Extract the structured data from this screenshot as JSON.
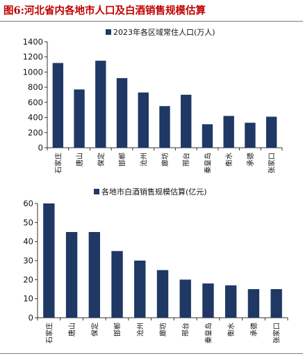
{
  "figure_title": "图6:河北省内各地市人口及白酒销售规模估算",
  "bar_color": "#1f3864",
  "footer": "",
  "chart_data": [
    {
      "type": "bar",
      "legend": "2023年各区域常住人口(万人)",
      "legend_position": "top-center",
      "categories": [
        "石家庄",
        "唐山",
        "保定",
        "邯郸",
        "沧州",
        "廊坊",
        "邢台",
        "秦皇岛",
        "衡水",
        "承德",
        "张家口"
      ],
      "values": [
        1120,
        770,
        1150,
        920,
        730,
        550,
        700,
        310,
        420,
        330,
        410
      ],
      "ylim": [
        0,
        1400
      ],
      "yticks": [
        0,
        200,
        400,
        600,
        800,
        1000,
        1200,
        1400
      ],
      "grid": false
    },
    {
      "type": "bar",
      "legend": "各地市白酒销售规模估算(亿元)",
      "legend_position": "top-center",
      "categories": [
        "石家庄",
        "唐山",
        "保定",
        "邯郸",
        "沧州",
        "廊坊",
        "邢台",
        "秦皇岛",
        "衡水",
        "承德",
        "张家口"
      ],
      "values": [
        60,
        45,
        45,
        35,
        30,
        25,
        20,
        18,
        17,
        15,
        15
      ],
      "ylim": [
        0,
        60
      ],
      "yticks": [
        0,
        10,
        20,
        30,
        40,
        50,
        60
      ],
      "grid": false
    }
  ]
}
